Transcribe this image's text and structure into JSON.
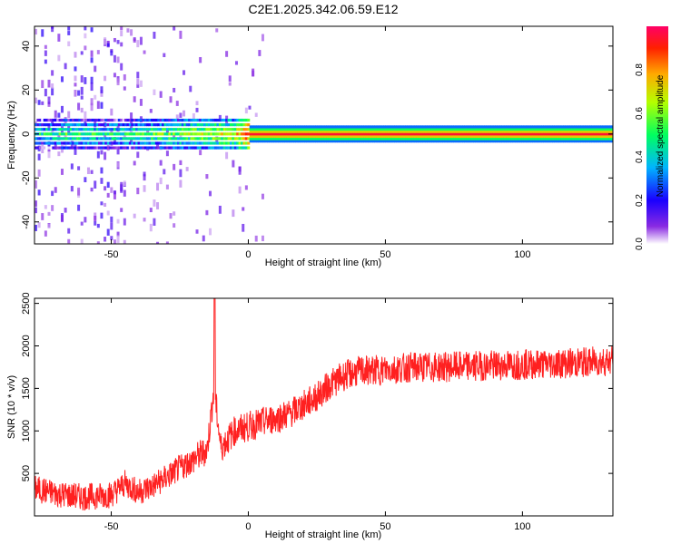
{
  "title": "C2E1.2025.342.06.59.E12",
  "chart_data": [
    {
      "type": "heatmap",
      "title": "C2E1.2025.342.06.59.E12",
      "xlabel": "Height of straight line (km)",
      "ylabel": "Frequency (Hz)",
      "xlim": [
        -78,
        133
      ],
      "ylim": [
        -50,
        49
      ],
      "xticks": [
        -50,
        0,
        50,
        100
      ],
      "yticks": [
        -40,
        -20,
        0,
        20,
        40
      ],
      "grid": false,
      "colorbar": {
        "label": "Normalized spectral amplitude",
        "range": [
          0.0,
          1.0
        ],
        "ticks": [
          0.0,
          0.2,
          0.4,
          0.6,
          0.8
        ],
        "colors": [
          "#ffffff",
          "#6a00ff",
          "#0000ff",
          "#00c8ff",
          "#00ff00",
          "#ffff00",
          "#ff8800",
          "#ff0000",
          "#ff0080"
        ]
      },
      "description_points": [
        {
          "x": -75,
          "amp": 0.45
        },
        {
          "x": -65,
          "amp": 0.55
        },
        {
          "x": -55,
          "amp": 0.5
        },
        {
          "x": -45,
          "amp": 0.5
        },
        {
          "x": -35,
          "amp": 0.55
        },
        {
          "x": -25,
          "amp": 0.6
        },
        {
          "x": -15,
          "amp": 0.65
        },
        {
          "x": -5,
          "amp": 0.7
        },
        {
          "x": 0,
          "amp": 0.95
        },
        {
          "x": 50,
          "amp": 0.95
        },
        {
          "x": 100,
          "amp": 0.95
        },
        {
          "x": 133,
          "amp": 0.95
        }
      ]
    },
    {
      "type": "line",
      "xlabel": "Height of straight line (km)",
      "ylabel": "SNR (10 * v/v)",
      "xlim": [
        -78,
        133
      ],
      "ylim": [
        0,
        2560
      ],
      "xticks": [
        -50,
        0,
        50,
        100
      ],
      "yticks": [
        500,
        1000,
        1500,
        2000,
        2500
      ],
      "grid": false,
      "line_color": "#ff2020",
      "x": [
        -78,
        -70,
        -60,
        -50,
        -45,
        -40,
        -35,
        -30,
        -25,
        -20,
        -15,
        -12.5,
        -10,
        -5,
        0,
        5,
        10,
        15,
        20,
        25,
        30,
        35,
        40,
        50,
        60,
        70,
        80,
        90,
        100,
        110,
        120,
        133
      ],
      "y": [
        320,
        260,
        220,
        250,
        380,
        280,
        350,
        450,
        560,
        660,
        780,
        1500,
        800,
        1000,
        1050,
        1100,
        1150,
        1200,
        1300,
        1400,
        1550,
        1650,
        1700,
        1720,
        1750,
        1750,
        1760,
        1770,
        1780,
        1790,
        1800,
        1830
      ]
    }
  ]
}
